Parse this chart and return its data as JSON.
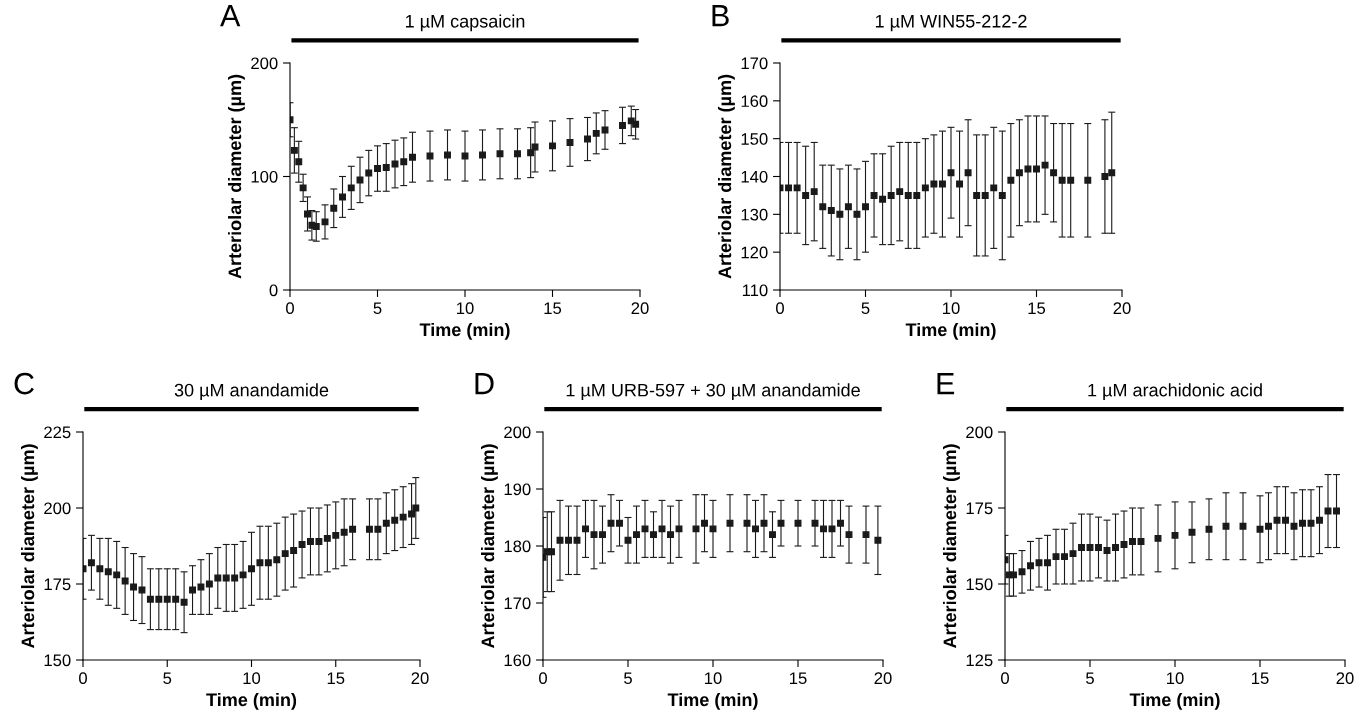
{
  "chart_data": [
    {
      "type": "scatter",
      "title": "1 µM capsaicin",
      "xlabel": "Time (min)",
      "ylabel": "Arteriolar diameter (µm)",
      "annotations": [
        "A"
      ],
      "marker": "square",
      "color": "#1a1a1a",
      "grid": false,
      "xlim": [
        0,
        20
      ],
      "xticks": [
        0,
        5,
        10,
        15,
        20
      ],
      "ylim": [
        0,
        200
      ],
      "yticks": [
        0,
        100,
        200
      ],
      "x": [
        0,
        0.25,
        0.5,
        0.75,
        1,
        1.25,
        1.5,
        2,
        2.5,
        3,
        3.5,
        4,
        4.5,
        5,
        5.5,
        6,
        6.5,
        7,
        8,
        9,
        10,
        11,
        12,
        13,
        13.75,
        14,
        15,
        16,
        17,
        17.5,
        18,
        19,
        19.5,
        19.75
      ],
      "values": [
        150,
        123,
        113,
        90,
        67,
        57,
        56,
        60,
        72,
        82,
        90,
        97,
        103,
        107,
        108,
        111,
        113,
        117,
        118,
        119,
        118,
        119,
        120,
        120,
        121,
        126,
        127,
        130,
        133,
        138,
        141,
        145,
        149,
        146
      ],
      "errors": [
        15,
        20,
        18,
        12,
        15,
        13,
        13,
        15,
        17,
        18,
        19,
        20,
        20,
        20,
        21,
        21,
        21,
        22,
        22,
        22,
        22,
        22,
        22,
        22,
        22,
        22,
        22,
        21,
        19,
        18,
        17,
        16,
        13,
        13
      ]
    },
    {
      "type": "scatter",
      "title": "1 µM WIN55-212-2",
      "xlabel": "Time (min)",
      "ylabel": "Arteriolar diameter (µm)",
      "annotations": [
        "B"
      ],
      "marker": "square",
      "color": "#1a1a1a",
      "grid": false,
      "xlim": [
        0,
        20
      ],
      "xticks": [
        0,
        5,
        10,
        15,
        20
      ],
      "ylim": [
        110,
        170
      ],
      "yticks": [
        110,
        120,
        130,
        140,
        150,
        160,
        170
      ],
      "x": [
        0,
        0.5,
        1,
        1.5,
        2,
        2.5,
        3,
        3.5,
        4,
        4.5,
        5,
        5.5,
        6,
        6.5,
        7,
        7.5,
        8,
        8.5,
        9,
        9.5,
        10,
        10.5,
        11,
        11.5,
        12,
        12.5,
        13,
        13.5,
        14,
        14.5,
        15,
        15.5,
        16,
        16.5,
        17,
        18,
        19,
        19.4
      ],
      "values": [
        137,
        137,
        137,
        135,
        136,
        132,
        131,
        130,
        132,
        130,
        132,
        135,
        134,
        135,
        136,
        135,
        135,
        137,
        138,
        138,
        141,
        138,
        141,
        135,
        135,
        137,
        135,
        139,
        141,
        142,
        142,
        143,
        141,
        139,
        139,
        139,
        140,
        141
      ],
      "errors": [
        12,
        12,
        12,
        13,
        13,
        11,
        12,
        12,
        11,
        12,
        12,
        11,
        12,
        13,
        13,
        14,
        14,
        13,
        13,
        14,
        12,
        14,
        14,
        16,
        16,
        16,
        17,
        15,
        14,
        14,
        14,
        13,
        13,
        15,
        15,
        15,
        15,
        16
      ]
    },
    {
      "type": "scatter",
      "title": "30 µM anandamide",
      "xlabel": "Time (min)",
      "ylabel": "Arteriolar diameter (µm)",
      "annotations": [
        "C"
      ],
      "marker": "square",
      "color": "#1a1a1a",
      "grid": false,
      "xlim": [
        0,
        20
      ],
      "xticks": [
        0,
        5,
        10,
        15,
        20
      ],
      "ylim": [
        150,
        225
      ],
      "yticks": [
        150,
        175,
        200,
        225
      ],
      "x": [
        0,
        0.5,
        1,
        1.5,
        2,
        2.5,
        3,
        3.5,
        4,
        4.5,
        5,
        5.5,
        6,
        6.5,
        7,
        7.5,
        8,
        8.5,
        9,
        9.5,
        10,
        10.5,
        11,
        11.5,
        12,
        12.5,
        13,
        13.5,
        14,
        14.5,
        15,
        15.5,
        16,
        17,
        17.5,
        18,
        18.5,
        19,
        19.5,
        19.75
      ],
      "values": [
        180,
        182,
        180,
        179,
        178,
        176,
        174,
        173,
        170,
        170,
        170,
        170,
        169,
        173,
        174,
        175,
        177,
        177,
        177,
        178,
        180,
        182,
        182,
        183,
        185,
        186,
        188,
        189,
        189,
        190,
        191,
        192,
        193,
        193,
        193,
        195,
        196,
        197,
        198,
        200
      ],
      "errors": [
        10,
        9,
        10,
        11,
        11,
        11,
        11,
        11,
        10,
        10,
        10,
        10,
        10,
        8,
        9,
        10,
        10,
        11,
        11,
        11,
        12,
        12,
        12,
        12,
        12,
        12,
        11,
        11,
        11,
        11,
        11,
        11,
        10,
        10,
        10,
        10,
        10,
        10,
        10,
        10
      ]
    },
    {
      "type": "scatter",
      "title": "1 µM URB-597 + 30 µM anandamide",
      "xlabel": "Time (min)",
      "ylabel": "Arteriolar diameter (µm)",
      "annotations": [
        "D"
      ],
      "marker": "square",
      "color": "#1a1a1a",
      "grid": false,
      "xlim": [
        0,
        20
      ],
      "xticks": [
        0,
        5,
        10,
        15,
        20
      ],
      "ylim": [
        160,
        200
      ],
      "yticks": [
        160,
        170,
        180,
        190,
        200
      ],
      "x": [
        0,
        0.25,
        0.5,
        1,
        1.5,
        2,
        2.5,
        3,
        3.5,
        4,
        4.5,
        5,
        5.5,
        6,
        6.5,
        7,
        7.5,
        8,
        9,
        9.5,
        10,
        11,
        12,
        12.5,
        13,
        13.5,
        14,
        15,
        16,
        16.5,
        17,
        17.5,
        18,
        19,
        19.7
      ],
      "values": [
        178,
        179,
        179,
        181,
        181,
        181,
        183,
        182,
        182,
        184,
        184,
        181,
        182,
        183,
        182,
        183,
        182,
        183,
        183,
        184,
        183,
        184,
        184,
        183,
        184,
        182,
        184,
        184,
        184,
        183,
        183,
        184,
        182,
        182,
        181
      ],
      "errors": [
        7,
        7,
        7,
        7,
        6,
        6,
        5,
        6,
        5,
        5,
        4,
        4,
        5,
        5,
        4,
        5,
        5,
        5,
        6,
        5,
        5,
        5,
        5,
        5,
        5,
        4,
        4,
        4,
        4,
        5,
        5,
        4,
        5,
        5,
        6
      ]
    },
    {
      "type": "scatter",
      "title": "1 µM arachidonic acid",
      "xlabel": "Time (min)",
      "ylabel": "Arteriolar diameter (µm)",
      "annotations": [
        "E"
      ],
      "marker": "square",
      "color": "#1a1a1a",
      "grid": false,
      "xlim": [
        0,
        20
      ],
      "xticks": [
        0,
        5,
        10,
        15,
        20
      ],
      "ylim": [
        125,
        200
      ],
      "yticks": [
        125,
        150,
        175,
        200
      ],
      "x": [
        0,
        0.25,
        0.5,
        1,
        1.5,
        2,
        2.5,
        3,
        3.5,
        4,
        4.5,
        5,
        5.5,
        6,
        6.5,
        7,
        7.5,
        8,
        9,
        10,
        11,
        12,
        13,
        14,
        15,
        15.5,
        16,
        16.5,
        17,
        17.5,
        18,
        18.5,
        19,
        19.5
      ],
      "values": [
        158,
        153,
        153,
        154,
        156,
        157,
        157,
        159,
        159,
        160,
        162,
        162,
        162,
        161,
        162,
        163,
        164,
        164,
        165,
        166,
        167,
        168,
        169,
        169,
        168,
        169,
        171,
        171,
        169,
        170,
        170,
        171,
        174,
        174
      ],
      "errors": [
        8,
        7,
        7,
        7,
        8,
        8,
        9,
        9,
        9,
        10,
        11,
        11,
        10,
        10,
        11,
        11,
        11,
        11,
        11,
        11,
        10,
        10,
        11,
        11,
        11,
        11,
        11,
        11,
        11,
        11,
        11,
        11,
        12,
        12
      ]
    }
  ]
}
